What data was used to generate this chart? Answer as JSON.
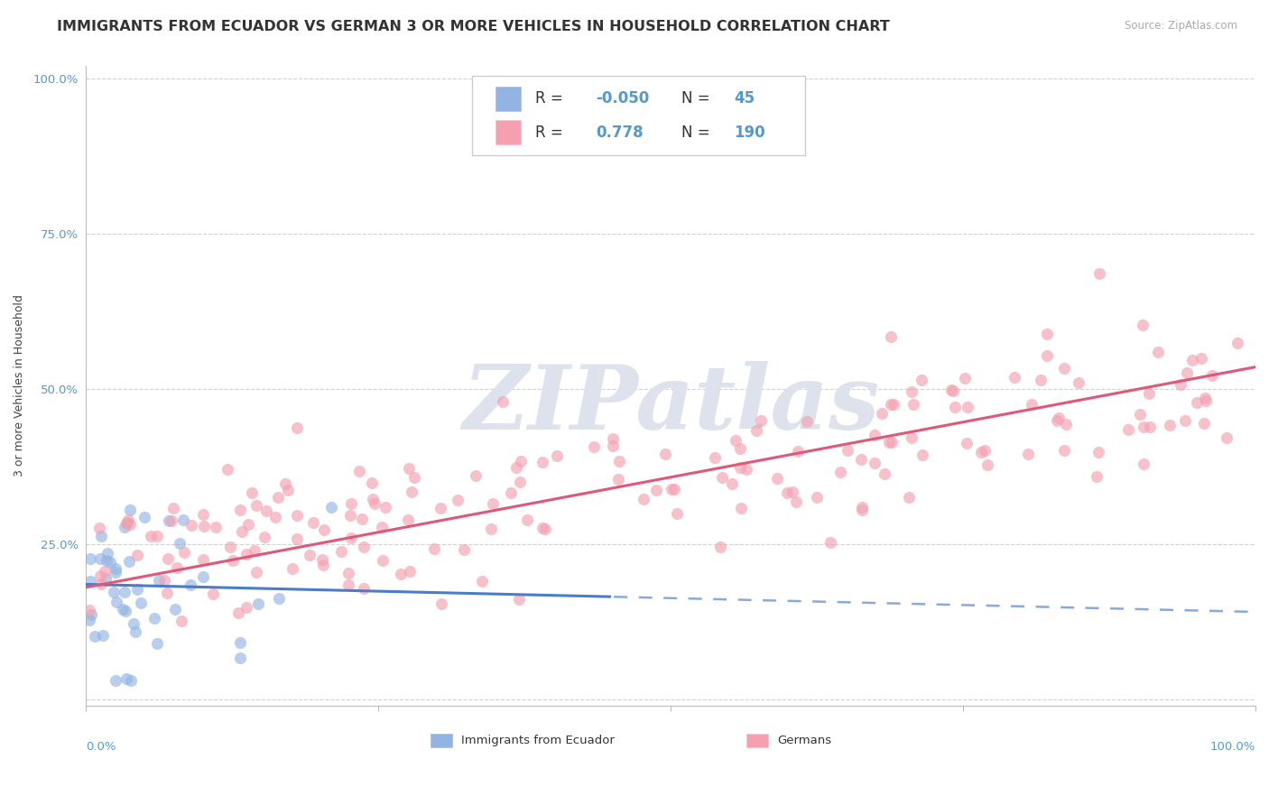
{
  "title": "IMMIGRANTS FROM ECUADOR VS GERMAN 3 OR MORE VEHICLES IN HOUSEHOLD CORRELATION CHART",
  "source": "Source: ZipAtlas.com",
  "ylabel": "3 or more Vehicles in Household",
  "xlim": [
    0.0,
    1.0
  ],
  "ylim": [
    -0.01,
    1.02
  ],
  "yticks": [
    0.0,
    0.25,
    0.5,
    0.75,
    1.0
  ],
  "ytick_labels": [
    "",
    "25.0%",
    "50.0%",
    "75.0%",
    "100.0%"
  ],
  "color_blue": "#92b4e3",
  "color_pink": "#f4a0b0",
  "line_blue": "#4a7cc9",
  "line_pink": "#e05878",
  "watermark": "ZIPatlas",
  "watermark_color": "#dde2ec",
  "blue_R": -0.05,
  "pink_R": 0.778,
  "blue_N": 45,
  "pink_N": 190,
  "title_fontsize": 11.5,
  "axis_label_fontsize": 9,
  "tick_fontsize": 9.5,
  "legend_fontsize": 12,
  "blue_line_y0": 0.185,
  "blue_line_y1": 0.165,
  "pink_line_y0": 0.18,
  "pink_line_y1": 0.535
}
